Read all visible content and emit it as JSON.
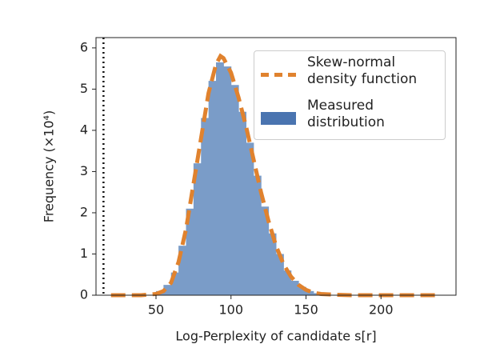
{
  "chart_data": {
    "type": "histogram",
    "xlabel": "Log-Perplexity of candidate s[r]",
    "ylabel": "Frequency (×10⁴)",
    "xlim": [
      10,
      250
    ],
    "ylim": [
      0,
      6.25
    ],
    "xticks": [
      50,
      100,
      150,
      200
    ],
    "yticks": [
      0,
      1,
      2,
      3,
      4,
      5,
      6
    ],
    "reference_line_x": 15,
    "legend": "upper right",
    "series": [
      {
        "name": "Measured\ndistribution",
        "type": "histogram",
        "color": "#7a9cc8",
        "bins": [
          50,
          55,
          60,
          65,
          70,
          75,
          80,
          85,
          90,
          95,
          100,
          105,
          110,
          115,
          120,
          125,
          130,
          135,
          140,
          145,
          150,
          155,
          160,
          165
        ],
        "values": [
          0.1,
          0.25,
          0.55,
          1.2,
          2.1,
          3.2,
          4.3,
          5.2,
          5.65,
          5.55,
          5.1,
          4.45,
          3.7,
          2.9,
          2.15,
          1.5,
          1.0,
          0.6,
          0.35,
          0.2,
          0.1,
          0.05,
          0.02
        ]
      },
      {
        "name": "Skew-normal\ndensity function",
        "type": "line",
        "color": "#e0822e",
        "x": [
          20,
          40,
          50,
          55,
          60,
          65,
          70,
          75,
          80,
          85,
          90,
          93,
          95,
          100,
          105,
          110,
          115,
          120,
          125,
          130,
          135,
          140,
          145,
          150,
          155,
          160,
          170,
          180,
          200,
          237
        ],
        "values": [
          0,
          0,
          0.03,
          0.1,
          0.3,
          0.8,
          1.6,
          2.7,
          3.8,
          4.9,
          5.6,
          5.8,
          5.75,
          5.4,
          4.8,
          4.1,
          3.3,
          2.5,
          1.8,
          1.2,
          0.75,
          0.45,
          0.25,
          0.13,
          0.06,
          0.03,
          0.01,
          0,
          0,
          0
        ]
      }
    ]
  }
}
